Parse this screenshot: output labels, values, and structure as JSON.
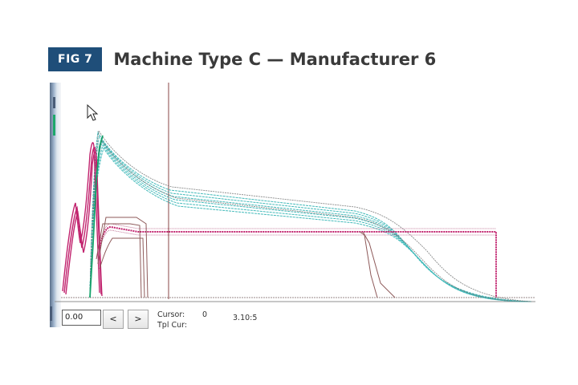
{
  "figure": {
    "badge": "FIG 7",
    "title": "Machine Type C — Manufacturer 6"
  },
  "toolbar": {
    "position_value": "0.00",
    "prev_label": "<",
    "next_label": ">",
    "cursor_label": "Cursor:",
    "cursor_value": "0",
    "tpl_cur_label": "Tpl Cur:",
    "time_value": "3.10:5"
  },
  "colors": {
    "badge_bg": "#1f4e79",
    "cyan_trace": "#2fb3b3",
    "magenta_trace": "#c1236e",
    "grey_trace": "#7a6a6a",
    "cursor_line": "#8a4545"
  },
  "icons": {
    "pointer": "mouse-pointer-icon"
  }
}
